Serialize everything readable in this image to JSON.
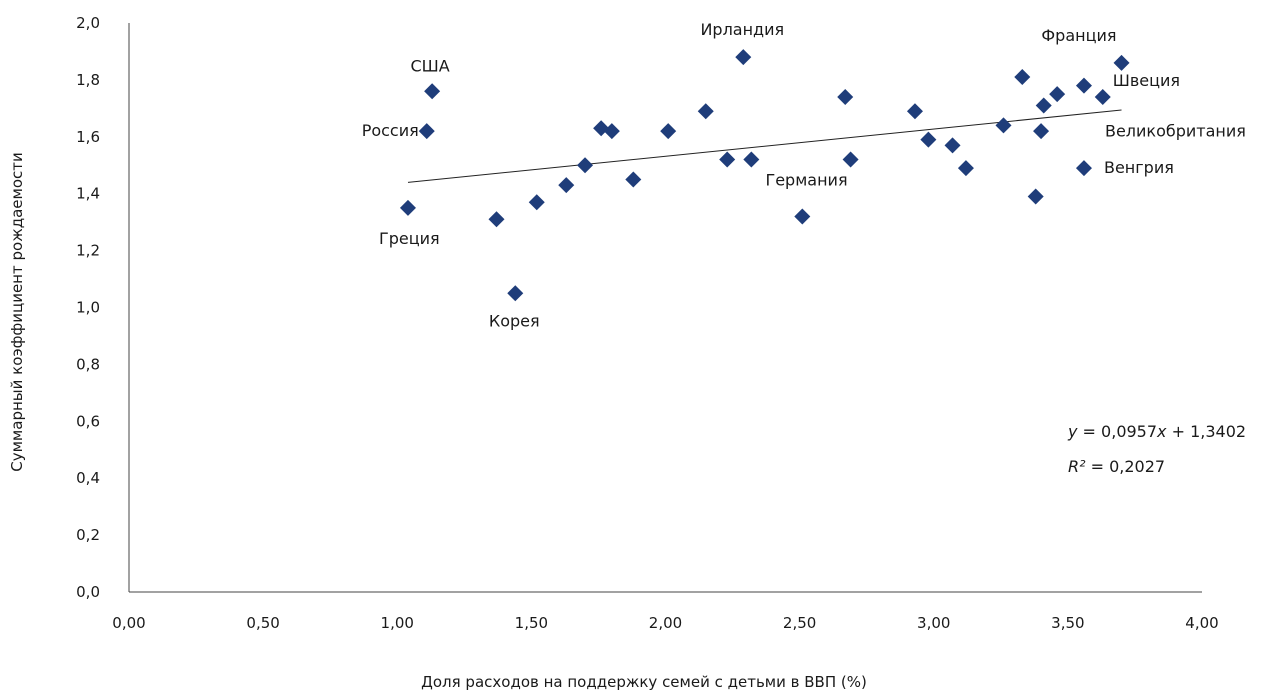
{
  "chart_data": {
    "type": "scatter",
    "xlabel": "Доля расходов на поддержку семей с детьми в ВВП (%)",
    "ylabel": "Суммарный коэффициент рождаемости",
    "xlim": [
      0,
      4
    ],
    "ylim": [
      0,
      2
    ],
    "x_ticks": [
      "0,00",
      "0,50",
      "1,00",
      "1,50",
      "2,00",
      "2,50",
      "3,00",
      "3,50",
      "4,00"
    ],
    "y_ticks": [
      "0,0",
      "0,2",
      "0,4",
      "0,6",
      "0,8",
      "1,0",
      "1,2",
      "1,4",
      "1,6",
      "1,8",
      "2,0"
    ],
    "marker_color": "#1f3d7a",
    "points": [
      {
        "x": 1.04,
        "y": 1.35,
        "label": "Греция"
      },
      {
        "x": 1.11,
        "y": 1.62,
        "label": "Россия"
      },
      {
        "x": 1.13,
        "y": 1.76,
        "label": "США"
      },
      {
        "x": 1.37,
        "y": 1.31,
        "label": ""
      },
      {
        "x": 1.44,
        "y": 1.05,
        "label": "Корея"
      },
      {
        "x": 1.52,
        "y": 1.37,
        "label": ""
      },
      {
        "x": 1.63,
        "y": 1.43,
        "label": ""
      },
      {
        "x": 1.7,
        "y": 1.5,
        "label": ""
      },
      {
        "x": 1.76,
        "y": 1.63,
        "label": ""
      },
      {
        "x": 1.8,
        "y": 1.62,
        "label": ""
      },
      {
        "x": 1.88,
        "y": 1.45,
        "label": ""
      },
      {
        "x": 2.01,
        "y": 1.62,
        "label": ""
      },
      {
        "x": 2.15,
        "y": 1.69,
        "label": ""
      },
      {
        "x": 2.23,
        "y": 1.52,
        "label": ""
      },
      {
        "x": 2.29,
        "y": 1.88,
        "label": "Ирландия"
      },
      {
        "x": 2.32,
        "y": 1.52,
        "label": ""
      },
      {
        "x": 2.51,
        "y": 1.32,
        "label": ""
      },
      {
        "x": 2.67,
        "y": 1.74,
        "label": ""
      },
      {
        "x": 2.69,
        "y": 1.52,
        "label": "Германия"
      },
      {
        "x": 2.93,
        "y": 1.69,
        "label": ""
      },
      {
        "x": 2.98,
        "y": 1.59,
        "label": ""
      },
      {
        "x": 3.07,
        "y": 1.57,
        "label": ""
      },
      {
        "x": 3.12,
        "y": 1.49,
        "label": ""
      },
      {
        "x": 3.26,
        "y": 1.64,
        "label": ""
      },
      {
        "x": 3.33,
        "y": 1.81,
        "label": ""
      },
      {
        "x": 3.38,
        "y": 1.39,
        "label": ""
      },
      {
        "x": 3.4,
        "y": 1.62,
        "label": ""
      },
      {
        "x": 3.41,
        "y": 1.71,
        "label": ""
      },
      {
        "x": 3.46,
        "y": 1.75,
        "label": ""
      },
      {
        "x": 3.56,
        "y": 1.78,
        "label": "Великобритания"
      },
      {
        "x": 3.56,
        "y": 1.49,
        "label": "Венгрия"
      },
      {
        "x": 3.63,
        "y": 1.74,
        "label": "Швеция"
      },
      {
        "x": 3.7,
        "y": 1.86,
        "label": "Франция"
      }
    ],
    "trendline": {
      "slope": 0.0957,
      "intercept": 1.3402,
      "x_start": 1.04,
      "x_end": 3.7
    },
    "equation": {
      "y_var": "y",
      "rhs_a": " = 0,0957",
      "x_var": "x",
      "rhs_b": " + 1,3402",
      "r_var": "R²",
      "r_val": " = 0,2027"
    }
  }
}
